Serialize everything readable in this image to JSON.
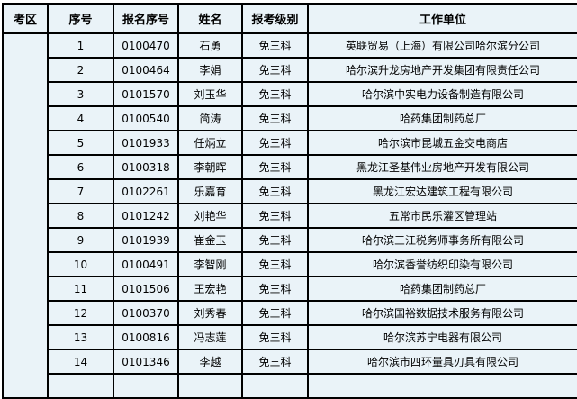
{
  "headers": [
    "考区",
    "序号",
    "报名序号",
    "姓名",
    "报考级别",
    "工作单位"
  ],
  "area": "",
  "rows": [
    {
      "no": "1",
      "reg": "0100470",
      "name": "石勇",
      "level": "免三科",
      "unit": "英联贸易（上海）有限公司哈尔滨分公司"
    },
    {
      "no": "2",
      "reg": "0100464",
      "name": "李娟",
      "level": "免三科",
      "unit": "哈尔滨升龙房地产开发集团有限责任公司"
    },
    {
      "no": "3",
      "reg": "0101570",
      "name": "刘玉华",
      "level": "免三科",
      "unit": "哈尔滨中实电力设备制造有限公司"
    },
    {
      "no": "4",
      "reg": "0100540",
      "name": "简涛",
      "level": "免三科",
      "unit": "哈药集团制药总厂"
    },
    {
      "no": "5",
      "reg": "0101933",
      "name": "任炳立",
      "level": "免三科",
      "unit": "哈尔滨市昆城五金交电商店"
    },
    {
      "no": "6",
      "reg": "0100318",
      "name": "李朝晖",
      "level": "免三科",
      "unit": "黑龙江圣基伟业房地产开发有限公司"
    },
    {
      "no": "7",
      "reg": "0102261",
      "name": "乐嘉育",
      "level": "免三科",
      "unit": "黑龙江宏达建筑工程有限公司"
    },
    {
      "no": "8",
      "reg": "0101242",
      "name": "刘艳华",
      "level": "免三科",
      "unit": "五常市民乐灌区管理站"
    },
    {
      "no": "9",
      "reg": "0101939",
      "name": "崔金玉",
      "level": "免三科",
      "unit": "哈尔滨三江税务师事务所有限公司"
    },
    {
      "no": "10",
      "reg": "0100491",
      "name": "李智刚",
      "level": "免三科",
      "unit": "哈尔滨香誉纺织印染有限公司"
    },
    {
      "no": "11",
      "reg": "0101506",
      "name": "王宏艳",
      "level": "免三科",
      "unit": "哈药集团制药总厂"
    },
    {
      "no": "12",
      "reg": "0100370",
      "name": "刘秀春",
      "level": "免三科",
      "unit": "哈尔滨国裕数据技术服务有限公司"
    },
    {
      "no": "13",
      "reg": "0100816",
      "name": "冯志莲",
      "level": "免三科",
      "unit": "哈尔滨苏宁电器有限公司"
    },
    {
      "no": "14",
      "reg": "0101346",
      "name": "李越",
      "level": "免三科",
      "unit": "哈尔滨市四环量具刃具有限公司"
    },
    {
      "no": "",
      "reg": "",
      "name": "",
      "level": "",
      "unit": ""
    }
  ]
}
